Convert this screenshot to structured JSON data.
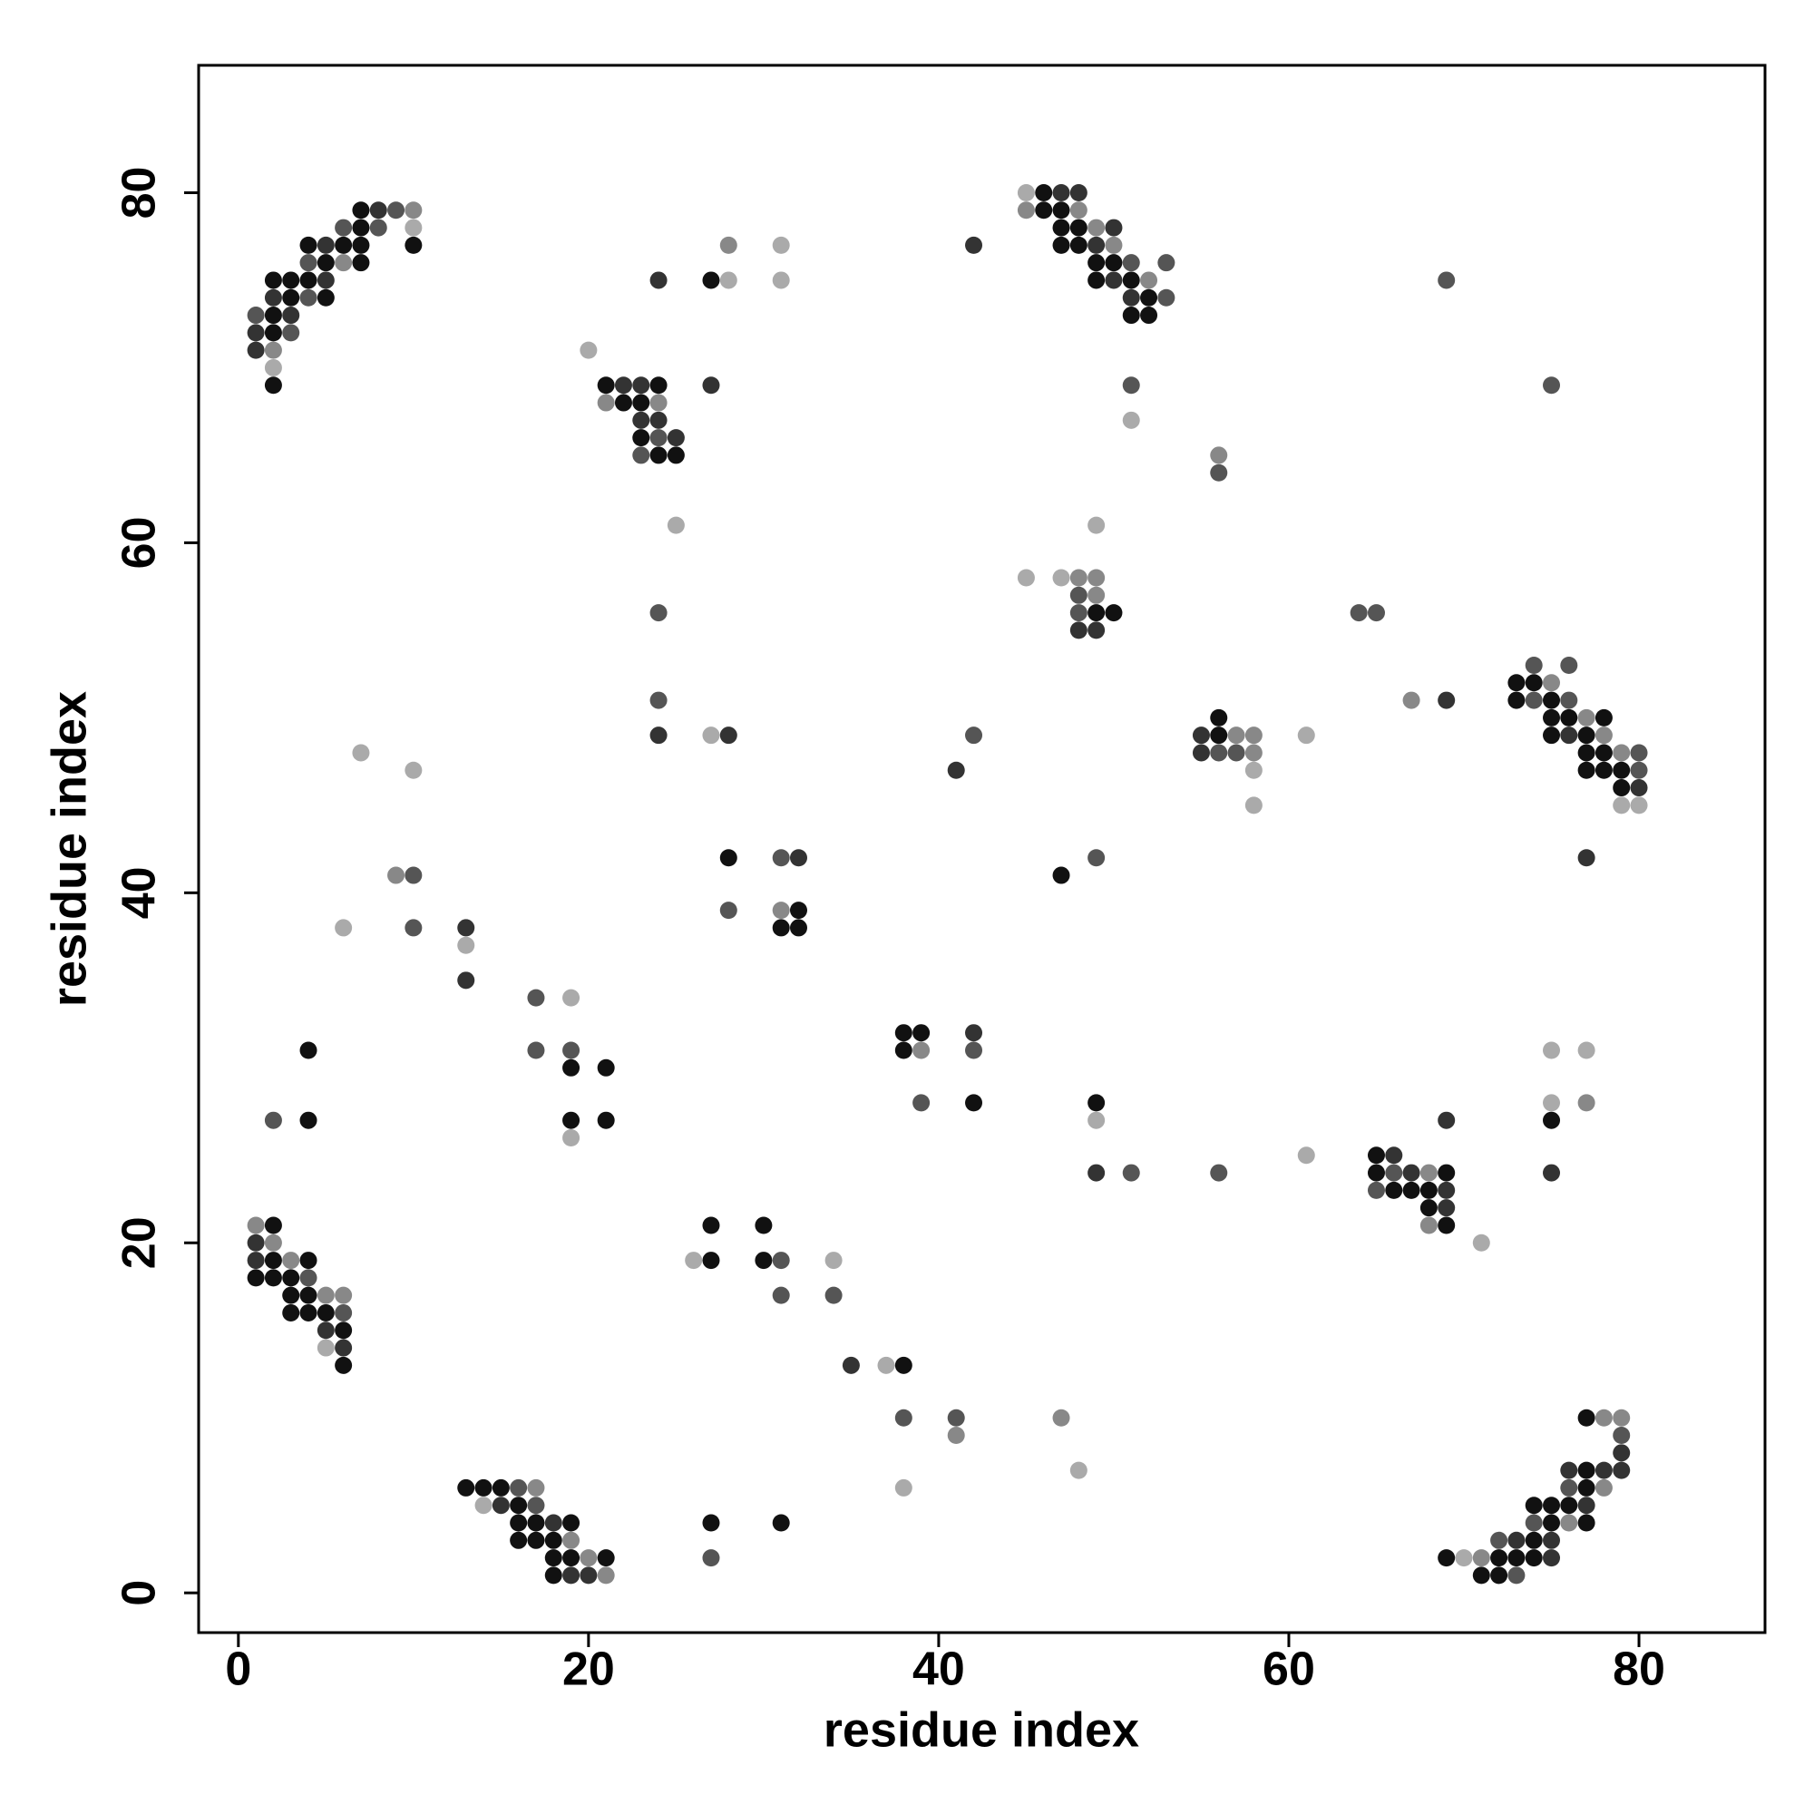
{
  "chart_data": {
    "type": "scatter",
    "xlabel": "residue index",
    "ylabel": "residue index",
    "xlim": [
      -2.27,
      87.2
    ],
    "ylim": [
      -2.27,
      87.28
    ],
    "xticks": [
      0,
      20,
      40,
      60,
      80
    ],
    "yticks": [
      0,
      20,
      40,
      60,
      80
    ],
    "series": [
      {
        "color": "#aaaaaa",
        "x": [
          2,
          10,
          20,
          28,
          31,
          31,
          25,
          27,
          45,
          51,
          49,
          45,
          47,
          58,
          58,
          61,
          79,
          80,
          7,
          10,
          6,
          13,
          19,
          19,
          49,
          61,
          75,
          77,
          75,
          71,
          5,
          26,
          34,
          37,
          48,
          38,
          14,
          70
        ],
        "values": [
          70,
          78,
          71,
          75,
          77,
          75,
          61,
          49,
          80,
          67,
          61,
          58,
          58,
          47,
          45,
          49,
          45,
          45,
          48,
          47,
          38,
          37,
          34,
          26,
          27,
          25,
          31,
          31,
          28,
          20,
          14,
          19,
          19,
          13,
          7,
          6,
          5,
          2
        ]
      },
      {
        "color": "#888888",
        "x": [
          2,
          6,
          10,
          21,
          24,
          28,
          45,
          48,
          49,
          50,
          52,
          56,
          48,
          49,
          49,
          57,
          58,
          58,
          67,
          75,
          77,
          78,
          79,
          9,
          31,
          77,
          39,
          68,
          68,
          1,
          2,
          3,
          5,
          6,
          41,
          47,
          17,
          19,
          20,
          21,
          71,
          76,
          78,
          78,
          79
        ],
        "values": [
          71,
          76,
          79,
          68,
          68,
          77,
          79,
          79,
          78,
          77,
          75,
          65,
          58,
          58,
          57,
          49,
          49,
          48,
          51,
          52,
          50,
          49,
          48,
          41,
          39,
          28,
          31,
          24,
          21,
          21,
          20,
          19,
          17,
          17,
          9,
          10,
          6,
          3,
          2,
          1,
          2,
          4,
          10,
          6,
          10
        ]
      },
      {
        "color": "#555555",
        "x": [
          1,
          3,
          4,
          4,
          6,
          8,
          9,
          23,
          24,
          24,
          24,
          51,
          53,
          53,
          51,
          56,
          69,
          75,
          48,
          48,
          64,
          65,
          56,
          57,
          42,
          74,
          74,
          76,
          76,
          80,
          80,
          10,
          10,
          28,
          31,
          49,
          17,
          17,
          19,
          2,
          42,
          39,
          51,
          56,
          66,
          65,
          4,
          6,
          31,
          31,
          34,
          38,
          41,
          16,
          17,
          27,
          72,
          73,
          74,
          76,
          79
        ],
        "values": [
          73,
          72,
          76,
          74,
          78,
          78,
          79,
          65,
          66,
          56,
          51,
          76,
          76,
          74,
          69,
          64,
          75,
          69,
          57,
          56,
          56,
          56,
          48,
          48,
          49,
          53,
          51,
          53,
          51,
          48,
          47,
          41,
          38,
          39,
          42,
          42,
          34,
          31,
          31,
          27,
          31,
          28,
          24,
          24,
          24,
          23,
          18,
          16,
          19,
          17,
          17,
          10,
          10,
          6,
          5,
          2,
          3,
          1,
          4,
          6,
          9
        ]
      },
      {
        "color": "#333333",
        "x": [
          1,
          1,
          2,
          3,
          5,
          5,
          8,
          22,
          23,
          23,
          24,
          25,
          24,
          27,
          24,
          28,
          42,
          47,
          48,
          49,
          50,
          50,
          51,
          48,
          49,
          55,
          55,
          41,
          69,
          76,
          80,
          77,
          13,
          13,
          32,
          42,
          49,
          75,
          66,
          67,
          69,
          69,
          69,
          1,
          1,
          5,
          6,
          35,
          15,
          18,
          19,
          20,
          73,
          75,
          75,
          76,
          77,
          78,
          79,
          79
        ],
        "values": [
          72,
          71,
          74,
          73,
          77,
          75,
          79,
          69,
          69,
          67,
          67,
          66,
          75,
          69,
          49,
          49,
          77,
          80,
          80,
          77,
          78,
          75,
          74,
          55,
          55,
          49,
          48,
          47,
          51,
          49,
          46,
          42,
          38,
          35,
          42,
          32,
          24,
          24,
          25,
          24,
          23,
          22,
          27,
          20,
          19,
          15,
          14,
          13,
          5,
          4,
          1,
          1,
          3,
          3,
          2,
          7,
          5,
          7,
          8,
          7
        ]
      },
      {
        "color": "#111111",
        "x": [
          2,
          2,
          2,
          2,
          3,
          3,
          4,
          4,
          5,
          5,
          6,
          7,
          7,
          7,
          7,
          10,
          21,
          22,
          23,
          23,
          24,
          24,
          25,
          27,
          46,
          46,
          47,
          47,
          47,
          48,
          48,
          49,
          49,
          50,
          51,
          51,
          52,
          52,
          49,
          50,
          56,
          56,
          73,
          73,
          74,
          75,
          75,
          75,
          76,
          77,
          77,
          77,
          78,
          78,
          78,
          79,
          79,
          28,
          32,
          31,
          32,
          47,
          19,
          21,
          19,
          21,
          4,
          4,
          38,
          39,
          38,
          42,
          49,
          75,
          65,
          65,
          69,
          66,
          67,
          68,
          68,
          69,
          2,
          2,
          4,
          1,
          2,
          3,
          3,
          4,
          3,
          4,
          5,
          6,
          6,
          27,
          27,
          30,
          30,
          38,
          13,
          14,
          15,
          16,
          16,
          17,
          19,
          16,
          17,
          18,
          18,
          19,
          21,
          18,
          27,
          31,
          69,
          71,
          72,
          72,
          73,
          74,
          74,
          74,
          75,
          75,
          76,
          77,
          77,
          77,
          77
        ],
        "values": [
          75,
          73,
          72,
          69,
          75,
          74,
          77,
          75,
          76,
          74,
          77,
          79,
          78,
          77,
          76,
          77,
          69,
          68,
          68,
          66,
          69,
          65,
          65,
          75,
          80,
          79,
          79,
          78,
          77,
          78,
          77,
          76,
          75,
          76,
          75,
          73,
          74,
          73,
          56,
          56,
          50,
          49,
          52,
          51,
          52,
          51,
          50,
          49,
          50,
          49,
          48,
          47,
          50,
          48,
          47,
          47,
          46,
          42,
          39,
          38,
          38,
          41,
          30,
          30,
          27,
          27,
          31,
          27,
          32,
          32,
          31,
          28,
          28,
          27,
          25,
          24,
          24,
          23,
          23,
          23,
          22,
          21,
          21,
          19,
          19,
          18,
          18,
          18,
          17,
          17,
          16,
          16,
          16,
          15,
          13,
          21,
          19,
          21,
          19,
          13,
          6,
          6,
          6,
          5,
          4,
          4,
          4,
          3,
          3,
          3,
          2,
          2,
          2,
          1,
          4,
          4,
          2,
          1,
          2,
          1,
          2,
          5,
          3,
          2,
          5,
          4,
          5,
          10,
          7,
          6,
          4
        ]
      }
    ]
  }
}
